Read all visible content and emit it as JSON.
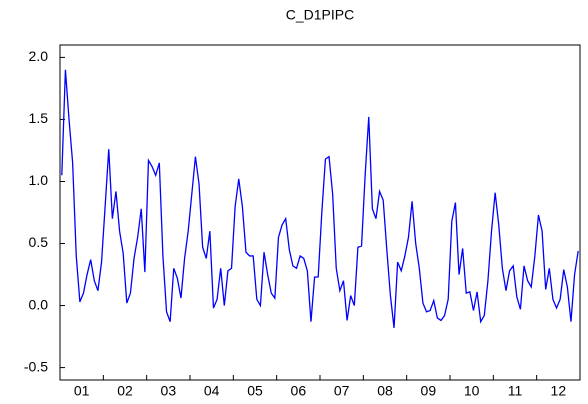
{
  "chart_data": {
    "type": "line",
    "title": "C_D1PIPC",
    "categories": [
      null,
      null,
      null,
      null,
      null,
      null,
      "01",
      null,
      null,
      null,
      null,
      null,
      null,
      null,
      null,
      null,
      null,
      null,
      "02",
      null,
      null,
      null,
      null,
      null,
      null,
      null,
      null,
      null,
      null,
      null,
      "03",
      null,
      null,
      null,
      null,
      null,
      null,
      null,
      null,
      null,
      null,
      null,
      "04",
      null,
      null,
      null,
      null,
      null,
      null,
      null,
      null,
      null,
      null,
      null,
      "05",
      null,
      null,
      null,
      null,
      null,
      null,
      null,
      null,
      null,
      null,
      null,
      "06",
      null,
      null,
      null,
      null,
      null,
      null,
      null,
      null,
      null,
      null,
      null,
      "07",
      null,
      null,
      null,
      null,
      null,
      null,
      null,
      null,
      null,
      null,
      null,
      "08",
      null,
      null,
      null,
      null,
      null,
      null,
      null,
      null,
      null,
      null,
      null,
      "09",
      null,
      null,
      null,
      null,
      null,
      null,
      null,
      null,
      null,
      null,
      null,
      "10",
      null,
      null,
      null,
      null,
      null,
      null,
      null,
      null,
      null,
      null,
      null,
      "11",
      null,
      null,
      null,
      null,
      null,
      null,
      null,
      null,
      null,
      null,
      null,
      "12",
      null,
      null,
      null,
      null,
      null
    ],
    "series": [
      {
        "name": "C_D1PIPC",
        "color": "#0000ff",
        "values": [
          1.05,
          1.9,
          1.5,
          1.15,
          0.4,
          0.03,
          0.1,
          0.25,
          0.37,
          0.2,
          0.12,
          0.35,
          0.8,
          1.26,
          0.7,
          0.92,
          0.6,
          0.42,
          0.02,
          0.1,
          0.38,
          0.55,
          0.78,
          0.27,
          1.17,
          1.12,
          1.05,
          1.15,
          0.4,
          -0.05,
          -0.13,
          0.3,
          0.22,
          0.06,
          0.38,
          0.6,
          0.9,
          1.2,
          0.98,
          0.47,
          0.38,
          0.6,
          -0.02,
          0.05,
          0.3,
          0.0,
          0.28,
          0.3,
          0.8,
          1.02,
          0.8,
          0.43,
          0.4,
          0.4,
          0.05,
          0.0,
          0.43,
          0.25,
          0.1,
          0.06,
          0.55,
          0.65,
          0.7,
          0.45,
          0.32,
          0.3,
          0.4,
          0.38,
          0.28,
          -0.13,
          0.23,
          0.23,
          0.75,
          1.18,
          1.2,
          0.9,
          0.3,
          0.12,
          0.2,
          -0.12,
          0.08,
          0.0,
          0.47,
          0.48,
          1.05,
          1.52,
          0.78,
          0.7,
          0.92,
          0.85,
          0.45,
          0.08,
          -0.18,
          0.35,
          0.28,
          0.4,
          0.55,
          0.84,
          0.5,
          0.3,
          0.02,
          -0.05,
          -0.04,
          0.04,
          -0.1,
          -0.12,
          -0.08,
          0.05,
          0.68,
          0.83,
          0.25,
          0.46,
          0.1,
          0.11,
          -0.04,
          0.11,
          -0.13,
          -0.08,
          0.2,
          0.6,
          0.91,
          0.65,
          0.3,
          0.12,
          0.28,
          0.32,
          0.07,
          -0.03,
          0.32,
          0.2,
          0.15,
          0.4,
          0.73,
          0.6,
          0.13,
          0.3,
          0.05,
          -0.02,
          0.05,
          0.29,
          0.15,
          -0.13,
          0.25,
          0.44
        ]
      }
    ],
    "ylim": [
      -0.6,
      2.1
    ],
    "yticks": [
      -0.5,
      {
        "value": 0.0,
        "label": "0.0"
      },
      0.5,
      {
        "value": 1.0,
        "label": "1.0"
      },
      1.5,
      {
        "value": 2.0,
        "label": "2.0"
      }
    ],
    "grid": false
  }
}
